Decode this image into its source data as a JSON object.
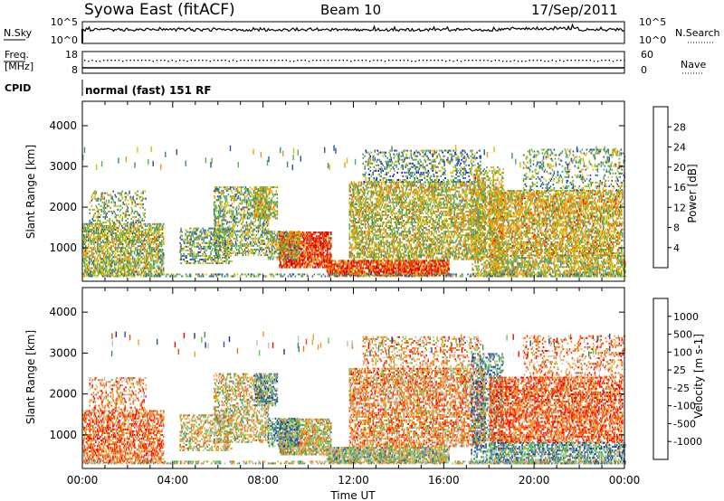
{
  "header": {
    "title": "Syowa East (fitACF)",
    "beam": "Beam 10",
    "date": "17/Sep/2011"
  },
  "status_panel": {
    "nsky_label": "N.Sky",
    "nsearch_label": "N.Search",
    "freq_label_1": "Freq.",
    "freq_label_2": "[MHz]",
    "nave_label": "Nave",
    "cpid_label": "CPID",
    "cpid_value": "normal (fast) 151 RF",
    "noise_ticks_left": [
      "10^5",
      "10^0"
    ],
    "noise_ticks_right": [
      "10^5",
      "10^0"
    ],
    "freq_ticks": [
      "18",
      "8"
    ],
    "nave_ticks": [
      "60",
      "0"
    ]
  },
  "chart_data": [
    {
      "type": "heatmap",
      "title": "",
      "xlabel": "",
      "ylabel": "Slant Range [km]",
      "x_ticks": [
        "00:00",
        "04:00",
        "08:00",
        "12:00",
        "16:00",
        "20:00",
        "00:00"
      ],
      "xlim_hours": [
        0,
        24
      ],
      "ylim": [
        180,
        4600
      ],
      "y_ticks": [
        1000,
        2000,
        3000,
        4000
      ],
      "colorbar": {
        "label": "Power [dB]",
        "ticks": [
          "4",
          "8",
          "12",
          "16",
          "20",
          "24",
          "28"
        ],
        "range": [
          0,
          32
        ],
        "colors": [
          "#0000ff",
          "#2a4fa8",
          "#3e8a70",
          "#56b04a",
          "#d8c000",
          "#ee9a10",
          "#f06a00",
          "#e00000"
        ]
      },
      "features": [
        {
          "region": "00:00-03:30",
          "range_km": [
            300,
            1600
          ],
          "power_db": "8-24"
        },
        {
          "region": "08:40-11:00",
          "range_km": [
            500,
            1400
          ],
          "power_db": "24-32"
        },
        {
          "region": "11:00-16:00",
          "range_km": [
            300,
            700
          ],
          "power_db": "24-32"
        },
        {
          "region": "12:00-24:00",
          "range_km": [
            300,
            3400
          ],
          "power_db": "4-28"
        }
      ]
    },
    {
      "type": "heatmap",
      "title": "",
      "xlabel": "Time UT",
      "ylabel": "Slant Range [km]",
      "x_ticks": [
        "00:00",
        "04:00",
        "08:00",
        "12:00",
        "16:00",
        "20:00",
        "00:00"
      ],
      "xlim_hours": [
        0,
        24
      ],
      "ylim": [
        180,
        4600
      ],
      "y_ticks": [
        1000,
        2000,
        3000,
        4000
      ],
      "colorbar": {
        "label": "Velocity [m s-1]",
        "ticks": [
          "1000",
          "500",
          "100",
          "25",
          "-25",
          "-100",
          "-500",
          "-1000"
        ],
        "range": [
          -1200,
          1200
        ],
        "colors": [
          "#ff0000",
          "#f24a00",
          "#f07a10",
          "#f5a020",
          "#c0c0c0",
          "#5ec840",
          "#3e8a70",
          "#2a4fa8",
          "#1a2fb0"
        ]
      },
      "features": [
        {
          "region": "00:00-03:30",
          "range_km": [
            300,
            1600
          ],
          "velocity_ms": "-500 to -100"
        },
        {
          "region": "05:30-11:30",
          "range_km": [
            500,
            1400
          ],
          "velocity_ms": "-25 to 25"
        },
        {
          "region": "12:00-24:00",
          "range_km": [
            300,
            3400
          ],
          "velocity_ms": "-1000 to 1000"
        }
      ]
    }
  ]
}
